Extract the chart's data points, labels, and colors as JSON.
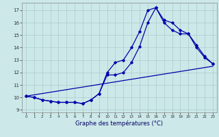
{
  "xlabel": "Graphe des températures (°C)",
  "background_color": "#cce8e8",
  "grid_color": "#aacccc",
  "line_color": "#0000aa",
  "xlim": [
    -0.5,
    23.5
  ],
  "ylim": [
    8.8,
    17.6
  ],
  "yticks": [
    9,
    10,
    11,
    12,
    13,
    14,
    15,
    16,
    17
  ],
  "xticks": [
    0,
    1,
    2,
    3,
    4,
    5,
    6,
    7,
    8,
    9,
    10,
    11,
    12,
    13,
    14,
    15,
    16,
    17,
    18,
    19,
    20,
    21,
    22,
    23
  ],
  "series1_x": [
    0,
    1,
    2,
    3,
    4,
    5,
    6,
    7,
    8,
    9,
    10,
    11,
    12,
    13,
    14,
    15,
    16,
    17,
    18,
    19,
    20,
    21,
    22,
    23
  ],
  "series1_y": [
    10.1,
    10.0,
    9.8,
    9.7,
    9.6,
    9.6,
    9.6,
    9.5,
    9.8,
    10.3,
    12.0,
    12.8,
    13.0,
    14.0,
    15.3,
    17.0,
    17.2,
    16.0,
    15.4,
    15.1,
    15.1,
    14.0,
    13.2,
    12.7
  ],
  "series2_x": [
    0,
    1,
    2,
    3,
    4,
    5,
    6,
    7,
    8,
    9,
    10,
    11,
    12,
    13,
    14,
    15,
    16,
    17,
    18,
    19,
    20,
    21,
    22,
    23
  ],
  "series2_y": [
    10.1,
    10.0,
    9.8,
    9.7,
    9.6,
    9.6,
    9.6,
    9.5,
    9.8,
    10.3,
    11.8,
    11.8,
    12.0,
    12.8,
    14.1,
    16.0,
    17.2,
    16.2,
    16.0,
    15.4,
    15.1,
    14.2,
    13.3,
    12.7
  ],
  "series3_x": [
    0,
    23
  ],
  "series3_y": [
    10.1,
    12.5
  ]
}
